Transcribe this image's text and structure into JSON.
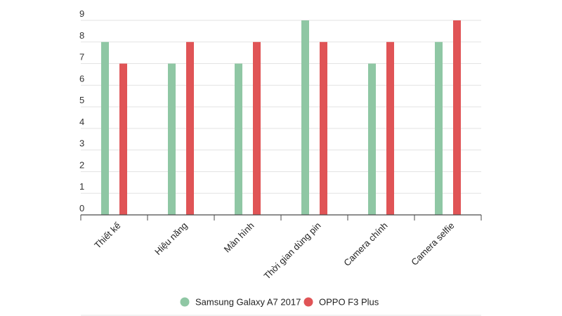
{
  "chart_data": {
    "type": "bar",
    "title": "",
    "xlabel": "",
    "ylabel": "",
    "ylim": [
      0,
      9
    ],
    "yticks": [
      0,
      1,
      2,
      3,
      4,
      5,
      6,
      7,
      8,
      9
    ],
    "grid": true,
    "legend_position": "bottom",
    "categories": [
      "Thiết kế",
      "Hiệu năng",
      "Màn hình",
      "Thời gian dùng pin",
      "Camera chính",
      "Camera selfie"
    ],
    "series": [
      {
        "name": "Samsung Galaxy A7 2017",
        "color": "#8fc7a4",
        "values": [
          8,
          7,
          7,
          9,
          7,
          8
        ]
      },
      {
        "name": "OPPO F3 Plus",
        "color": "#e05456",
        "values": [
          7,
          8,
          8,
          8,
          8,
          9
        ]
      }
    ]
  }
}
